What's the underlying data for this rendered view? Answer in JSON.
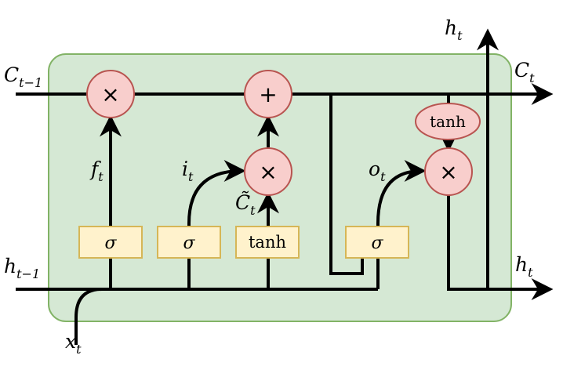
{
  "cell": {
    "background": "#d5e8d4",
    "border": "#82b366",
    "gate_fill": "#fff2cc",
    "gate_border": "#d6b656",
    "op_fill": "#f8cecc",
    "op_border": "#b85450"
  },
  "labels": {
    "c_prev": {
      "main": "C",
      "sub": "t−1"
    },
    "c_next": {
      "main": "C",
      "sub": "t"
    },
    "h_prev": {
      "main": "h",
      "sub": "t−1"
    },
    "h_next": {
      "main": "h",
      "sub": "t"
    },
    "h_top": {
      "main": "h",
      "sub": "t"
    },
    "x_in": {
      "main": "x",
      "sub": "t"
    },
    "f_gate": {
      "main": "f",
      "sub": "t"
    },
    "i_gate": {
      "main": "i",
      "sub": "t"
    },
    "o_gate": {
      "main": "o",
      "sub": "t"
    },
    "c_tilde": {
      "main": "C̃",
      "sub": "t"
    }
  },
  "gates": {
    "forget": "σ",
    "input": "σ",
    "candidate": "tanh",
    "output": "σ"
  },
  "ops": {
    "forget_mult": "×",
    "cell_add": "+",
    "input_mult": "×",
    "output_mult": "×",
    "cell_tanh": "tanh"
  }
}
